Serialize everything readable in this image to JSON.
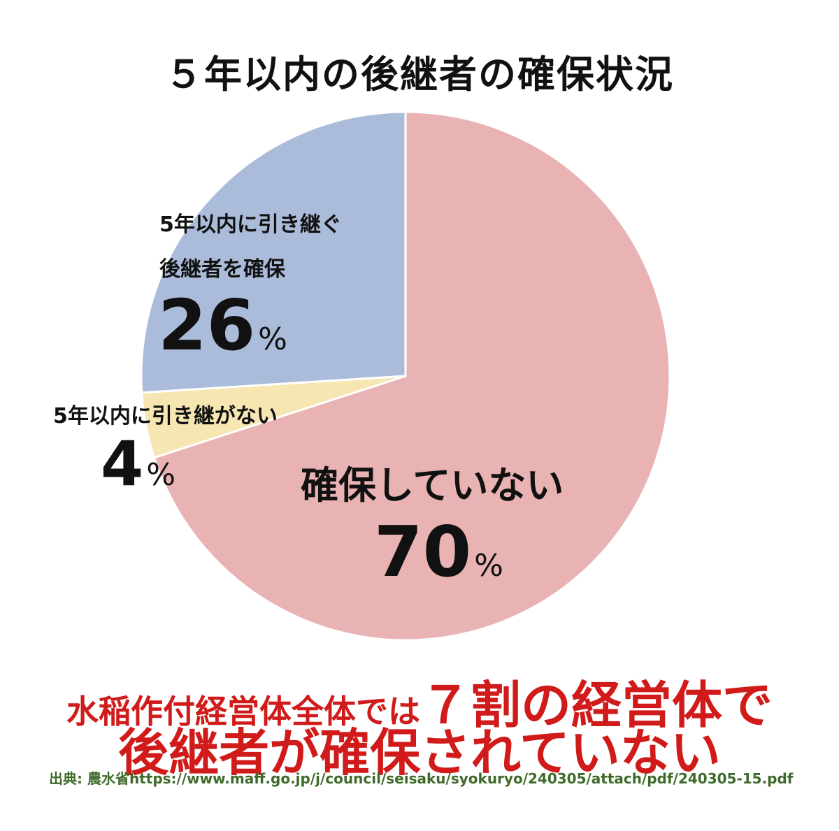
{
  "chart_data": {
    "type": "pie",
    "title": "５年以内の後継者の確保状況",
    "slices": [
      {
        "name": "確保していない",
        "value": 70,
        "label": "70",
        "color": "#e9b3b4"
      },
      {
        "name": "5年以内に引き継がない",
        "value": 4,
        "label": "4",
        "color": "#f6e6b2"
      },
      {
        "name": "5年以内に引き継ぐ後継者を確保",
        "label_line1": "5年以内に引き継ぐ",
        "label_line2": "後継者を確保",
        "value": 26,
        "label": "26",
        "color": "#abbcdb"
      }
    ],
    "unit": "%",
    "start": "12 o'clock, clockwise"
  },
  "note": {
    "line1_small": "水稲作付経営体全体では",
    "line1_large": "７割の経営体で",
    "line2": "後継者が確保されていない",
    "color": "#d11a1a"
  },
  "source": "出典: 農水省https://www.maff.go.jp/j/council/seisaku/syokuryo/240305/attach/pdf/240305-15.pdf"
}
